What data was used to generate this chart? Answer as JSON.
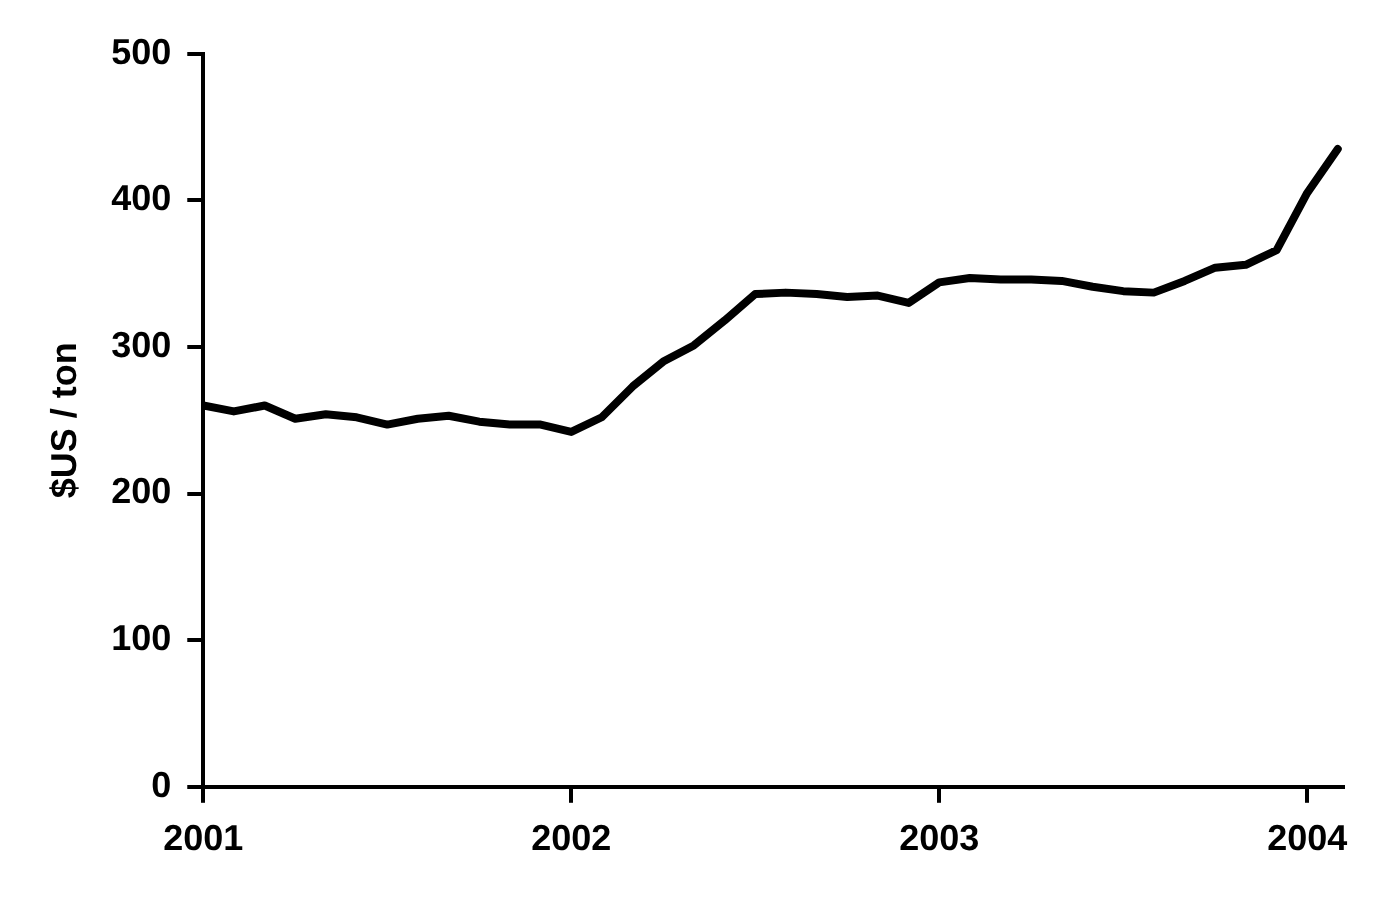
{
  "chart_data": {
    "type": "line",
    "ylabel": "$US / ton",
    "xlim": [
      2001,
      2004.1
    ],
    "xticks": [
      2001,
      2002,
      2003,
      2004
    ],
    "ylim": [
      0,
      500
    ],
    "yticks": [
      0,
      100,
      200,
      300,
      400,
      500
    ],
    "grid": false,
    "legend": false,
    "marker": "none",
    "line_style": "solid",
    "series": [
      {
        "color": "#000000",
        "x": [
          2001,
          2001.083,
          2001.167,
          2001.25,
          2001.333,
          2001.417,
          2001.5,
          2001.583,
          2001.667,
          2001.75,
          2001.833,
          2001.917,
          2002,
          2002.083,
          2002.167,
          2002.25,
          2002.333,
          2002.417,
          2002.5,
          2002.583,
          2002.667,
          2002.75,
          2002.833,
          2002.917,
          2003,
          2003.083,
          2003.167,
          2003.25,
          2003.333,
          2003.417,
          2003.5,
          2003.583,
          2003.667,
          2003.75,
          2003.833,
          2003.917,
          2004,
          2004.083
        ],
        "values": [
          260,
          256,
          260,
          251,
          254,
          252,
          247,
          251,
          253,
          249,
          247,
          247,
          242,
          252,
          273,
          290,
          301,
          318,
          336,
          337,
          336,
          334,
          335,
          330,
          344,
          347,
          346,
          346,
          345,
          341,
          338,
          337,
          345,
          354,
          356,
          366,
          405,
          435
        ]
      }
    ]
  }
}
